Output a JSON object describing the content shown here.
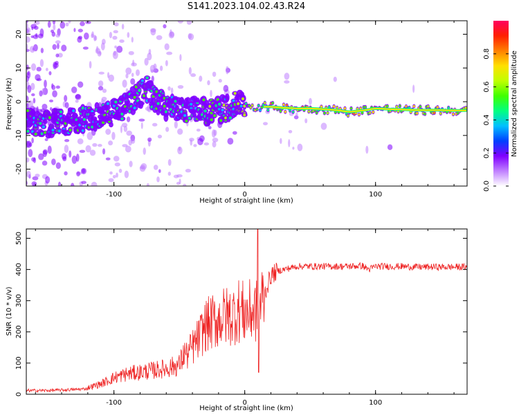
{
  "title": "S141.2023.104.02.43.R24",
  "chart_data": [
    {
      "type": "heatmap",
      "name": "spectrogram",
      "xlabel": "Height of straight line (km)",
      "ylabel": "Frequency (Hz)",
      "xlim": [
        -167,
        170
      ],
      "ylim": [
        -25,
        24
      ],
      "xticks": [
        -100,
        0,
        100
      ],
      "yticks": [
        -20,
        -10,
        0,
        10,
        20
      ],
      "ridge": {
        "x": [
          -165,
          -150,
          -140,
          -130,
          -120,
          -110,
          -100,
          -90,
          -80,
          -75,
          -70,
          -60,
          -50,
          -40,
          -30,
          -20,
          -10,
          -5,
          0,
          10,
          20,
          30,
          40,
          50,
          60,
          70,
          80,
          90,
          100,
          110,
          120,
          130,
          140,
          150,
          160,
          168
        ],
        "y": [
          -6,
          -6.5,
          -6,
          -5.5,
          -5,
          -4.5,
          -3,
          -1,
          2,
          4,
          1,
          -1.5,
          -2.5,
          -2,
          -3,
          -2.5,
          -1.5,
          0,
          -1,
          -1.5,
          -1.5,
          -1.8,
          -2,
          -2,
          -2.2,
          -2.5,
          -3,
          -2.6,
          -2,
          -2.2,
          -2.3,
          -2.5,
          -2.5,
          -2.5,
          -2.6,
          -2.6
        ]
      },
      "colorbar": {
        "label": "Normalized spectral amplitude",
        "range": [
          0,
          1
        ],
        "ticks": [
          0.0,
          0.2,
          0.4,
          0.6,
          0.8
        ],
        "tick_labels": [
          "0.0",
          "0.2",
          "0.4",
          "0.6",
          "0.8"
        ],
        "colors": [
          "#ffffff",
          "#c080ff",
          "#8000ff",
          "#0040ff",
          "#00c0ff",
          "#00ff80",
          "#40ff00",
          "#c0ff00",
          "#ffe000",
          "#ff8000",
          "#ff2000",
          "#ff0060"
        ]
      }
    },
    {
      "type": "line",
      "name": "snr",
      "xlabel": "Height of straight line (km)",
      "ylabel": "SNR (10 * v/v)",
      "xlim": [
        -167,
        170
      ],
      "ylim": [
        0,
        530
      ],
      "xticks": [
        -100,
        0,
        100
      ],
      "yticks": [
        0,
        100,
        200,
        300,
        400,
        500
      ],
      "color": "#ee2222",
      "x": [
        -167,
        -150,
        -130,
        -120,
        -110,
        -100,
        -90,
        -80,
        -70,
        -60,
        -50,
        -45,
        -40,
        -35,
        -30,
        -25,
        -20,
        -15,
        -10,
        -5,
        0,
        5,
        10,
        15,
        20,
        25,
        30,
        40,
        50,
        60,
        70,
        80,
        90,
        95,
        100,
        110,
        120,
        130,
        140,
        150,
        160,
        170
      ],
      "y": [
        12,
        12,
        15,
        18,
        28,
        45,
        55,
        60,
        65,
        70,
        80,
        120,
        150,
        180,
        220,
        230,
        240,
        250,
        250,
        270,
        260,
        265,
        270,
        320,
        380,
        395,
        400,
        410,
        410,
        410,
        410,
        410,
        412,
        400,
        410,
        410,
        410,
        408,
        408,
        408,
        408,
        408
      ]
    }
  ]
}
